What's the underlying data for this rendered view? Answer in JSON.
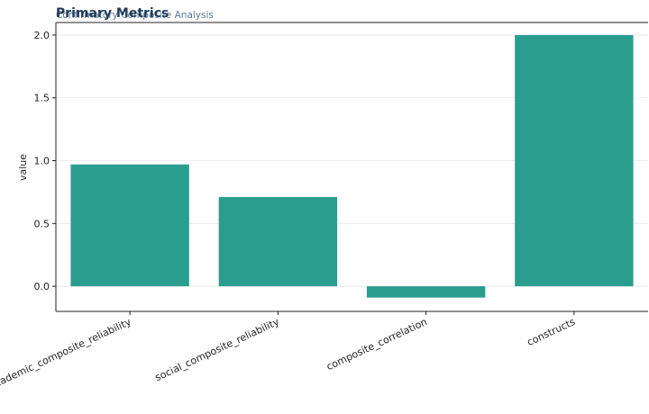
{
  "chart_data": {
    "type": "bar",
    "title": "Primary Metrics",
    "subtitle": "Confirmatory Composite Analysis",
    "xlabel": "",
    "ylabel": "value",
    "categories": [
      "academic_composite_reliability",
      "social_composite_reliability",
      "composite_correlation",
      "constructs"
    ],
    "values": [
      0.97,
      0.71,
      -0.09,
      2.0
    ],
    "ylim": [
      -0.2,
      2.1
    ],
    "yticks": [
      0.0,
      0.5,
      1.0,
      1.5,
      2.0
    ],
    "ytick_labels": [
      "0.0",
      "0.5",
      "1.0",
      "1.5",
      "2.0"
    ],
    "grid": "horizontal",
    "colors": {
      "bar": "#2a9d8f",
      "title": "#1f3b57",
      "subtitle": "#5a7a94"
    }
  }
}
